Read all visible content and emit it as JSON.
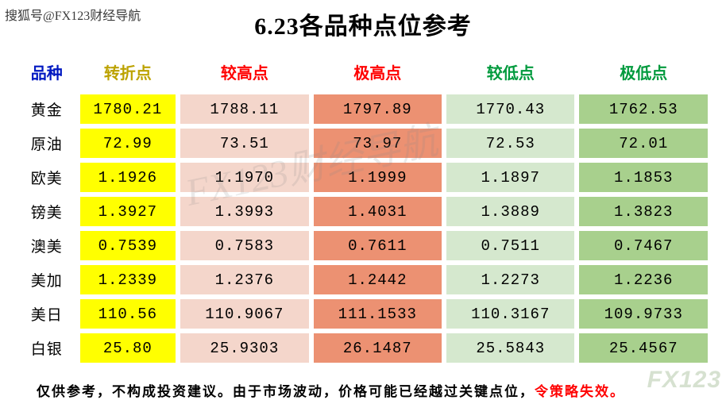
{
  "source_tag": "搜狐号@FX123财经导航",
  "title": "6.23各品种点位参考",
  "columns": [
    {
      "key": "product",
      "label": "品种",
      "header_color": "#0018c1"
    },
    {
      "key": "turning",
      "label": "转折点",
      "header_color": "#bca200"
    },
    {
      "key": "higher",
      "label": "较高点",
      "header_color": "#ff0000"
    },
    {
      "key": "highest",
      "label": "极高点",
      "header_color": "#ff0000"
    },
    {
      "key": "lower",
      "label": "较低点",
      "header_color": "#009a3d"
    },
    {
      "key": "lowest",
      "label": "极低点",
      "header_color": "#009a3d"
    }
  ],
  "cell_colors": {
    "product": "#ffffff",
    "turning": "#ffff00",
    "higher": "#f4d6cb",
    "highest": "#ec9172",
    "lower": "#d5e8ce",
    "lowest": "#a8d08d"
  },
  "col_widths": {
    "product": "70px",
    "turning": "118px",
    "higher": "158px",
    "highest": "158px",
    "lower": "158px",
    "lowest": "158px"
  },
  "rows": [
    {
      "product": "黄金",
      "turning": "1780.21",
      "higher": "1788.11",
      "highest": "1797.89",
      "lower": "1770.43",
      "lowest": "1762.53"
    },
    {
      "product": "原油",
      "turning": "72.99",
      "higher": "73.51",
      "highest": "73.97",
      "lower": "72.53",
      "lowest": "72.01"
    },
    {
      "product": "欧美",
      "turning": "1.1926",
      "higher": "1.1970",
      "highest": "1.1999",
      "lower": "1.1897",
      "lowest": "1.1853"
    },
    {
      "product": "镑美",
      "turning": "1.3927",
      "higher": "1.3993",
      "highest": "1.4031",
      "lower": "1.3889",
      "lowest": "1.3823"
    },
    {
      "product": "澳美",
      "turning": "0.7539",
      "higher": "0.7583",
      "highest": "0.7611",
      "lower": "0.7511",
      "lowest": "0.7467"
    },
    {
      "product": "美加",
      "turning": "1.2339",
      "higher": "1.2376",
      "highest": "1.2442",
      "lower": "1.2273",
      "lowest": "1.2236"
    },
    {
      "product": "美日",
      "turning": "110.56",
      "higher": "110.9067",
      "highest": "111.1533",
      "lower": "110.3167",
      "lowest": "109.9733"
    },
    {
      "product": "白银",
      "turning": "25.80",
      "higher": "25.9303",
      "highest": "26.1487",
      "lower": "25.5843",
      "lowest": "25.4567"
    }
  ],
  "disclaimer": {
    "text_black": "仅供参考，不构成投资建议。由于市场波动，价格可能已经越过关键点位，",
    "text_red": "令策略失效。"
  },
  "watermark_text": "FX123财经导航",
  "corner_watermark": "FX123"
}
